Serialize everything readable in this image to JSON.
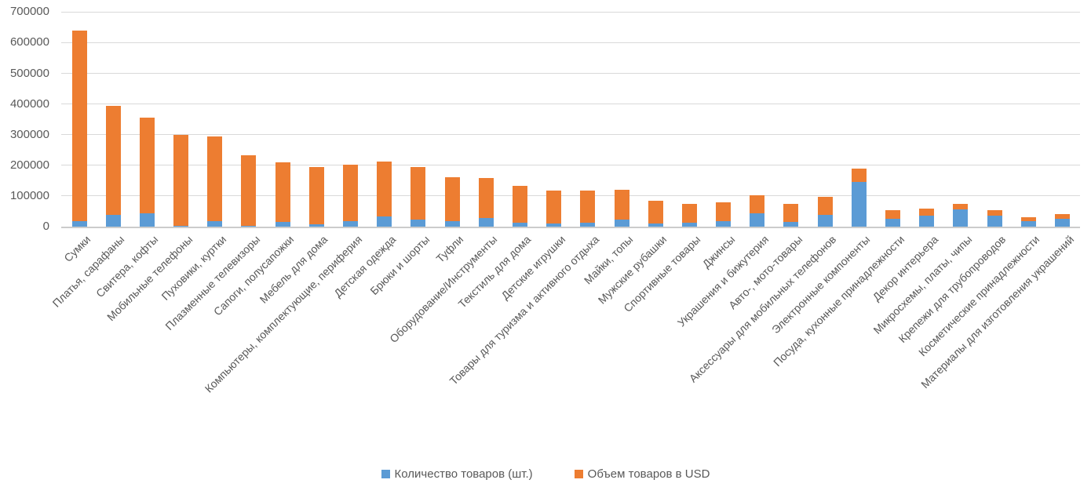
{
  "chart_data": {
    "type": "bar",
    "stacked": true,
    "title": "",
    "xlabel": "",
    "ylabel": "",
    "ylim": [
      0,
      700000
    ],
    "ytick_step": 100000,
    "yticks": [
      0,
      100000,
      200000,
      300000,
      400000,
      500000,
      600000,
      700000
    ],
    "grid": true,
    "legend_position": "bottom",
    "categories": [
      "Сумки",
      "Платья, сарафаны",
      "Свитера, кофты",
      "Мобильные телефоны",
      "Пуховики, куртки",
      "Плазменные телевизоры",
      "Сапоги, полусапожки",
      "Мебель для дома",
      "Компьютеры, комплектующие, периферия",
      "Детская одежда",
      "Брюки и шорты",
      "Туфли",
      "Оборудование/Инструменты",
      "Текстиль для дома",
      "Детские игрушки",
      "Товары для туризма и активного отдыха",
      "Майки, топы",
      "Мужские рубашки",
      "Спортивные товары",
      "Джинсы",
      "Украшения и бижутерия",
      "Авто-, мото-товары",
      "Аксессуары для мобильных телефонов",
      "Электронные компоненты",
      "Посуда, кухонные принадлежности",
      "Декор интерьера",
      "Микросхемы, платы, чипы",
      "Крепежи для трубопроводов",
      "Косметические принадлежности",
      "Материалы для изготовления украшений"
    ],
    "series": [
      {
        "name": "Количество товаров (шт.)",
        "color": "#5B9BD5",
        "values": [
          18000,
          38000,
          43000,
          2000,
          18000,
          2000,
          16000,
          7000,
          19000,
          34000,
          23000,
          19000,
          29000,
          14000,
          11000,
          13000,
          24000,
          10000,
          12000,
          19000,
          43000,
          16000,
          38000,
          145000,
          26000,
          35000,
          56000,
          35000,
          17000,
          25000
        ]
      },
      {
        "name": "Объем товаров в USD",
        "color": "#ED7D31",
        "values": [
          622000,
          355000,
          312000,
          298000,
          277000,
          231000,
          194000,
          188000,
          183000,
          178000,
          172000,
          142000,
          129000,
          119000,
          107000,
          105000,
          97000,
          75000,
          62000,
          60000,
          59000,
          58000,
          59000,
          45000,
          28000,
          24000,
          19000,
          18000,
          14000,
          15000
        ]
      }
    ],
    "colors": {
      "gridline": "#d9d9d9",
      "axis_text": "#595959"
    }
  }
}
